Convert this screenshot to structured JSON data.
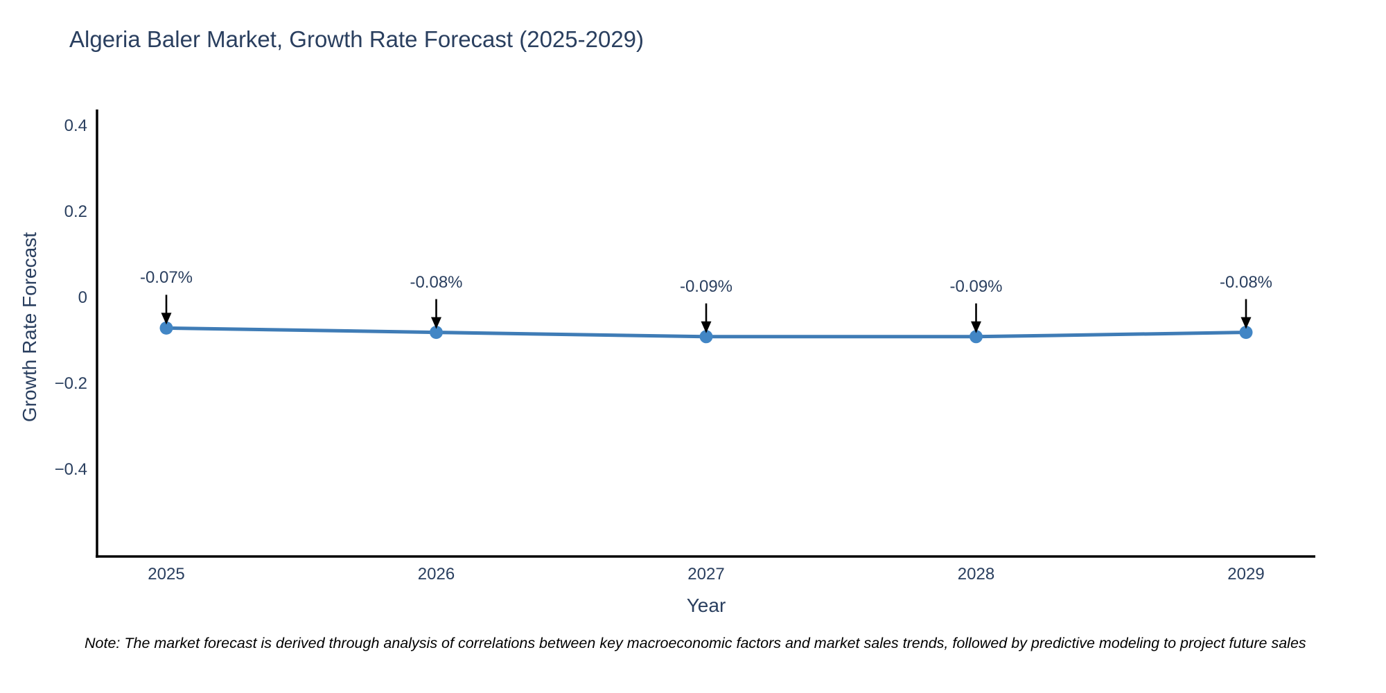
{
  "title": "Algeria Baler Market, Growth Rate Forecast (2025-2029)",
  "chart_data": {
    "type": "line",
    "x": [
      "2025",
      "2026",
      "2027",
      "2028",
      "2029"
    ],
    "values": [
      -0.07,
      -0.08,
      -0.09,
      -0.09,
      -0.08
    ],
    "point_labels": [
      "-0.07%",
      "-0.08%",
      "-0.09%",
      "-0.09%",
      "-0.08%"
    ],
    "title": "Algeria Baler Market, Growth Rate Forecast (2025-2029)",
    "xlabel": "Year",
    "ylabel": "Growth Rate Forecast",
    "yticks": [
      "0.4",
      "0.2",
      "0",
      "−0.2",
      "−0.4"
    ],
    "ytick_values": [
      0.4,
      0.2,
      0,
      -0.2,
      -0.4
    ],
    "ylim": [
      -0.6,
      0.44
    ],
    "grid": false,
    "legend": "none",
    "line_color": "#3f7cb6",
    "marker_color": "#4286c5",
    "arrow_color": "#000000",
    "axis_color": "#000000"
  },
  "note": "Note: The market forecast is derived through analysis of correlations between key macroeconomic factors and market sales trends, followed by predictive modeling to project future sales"
}
